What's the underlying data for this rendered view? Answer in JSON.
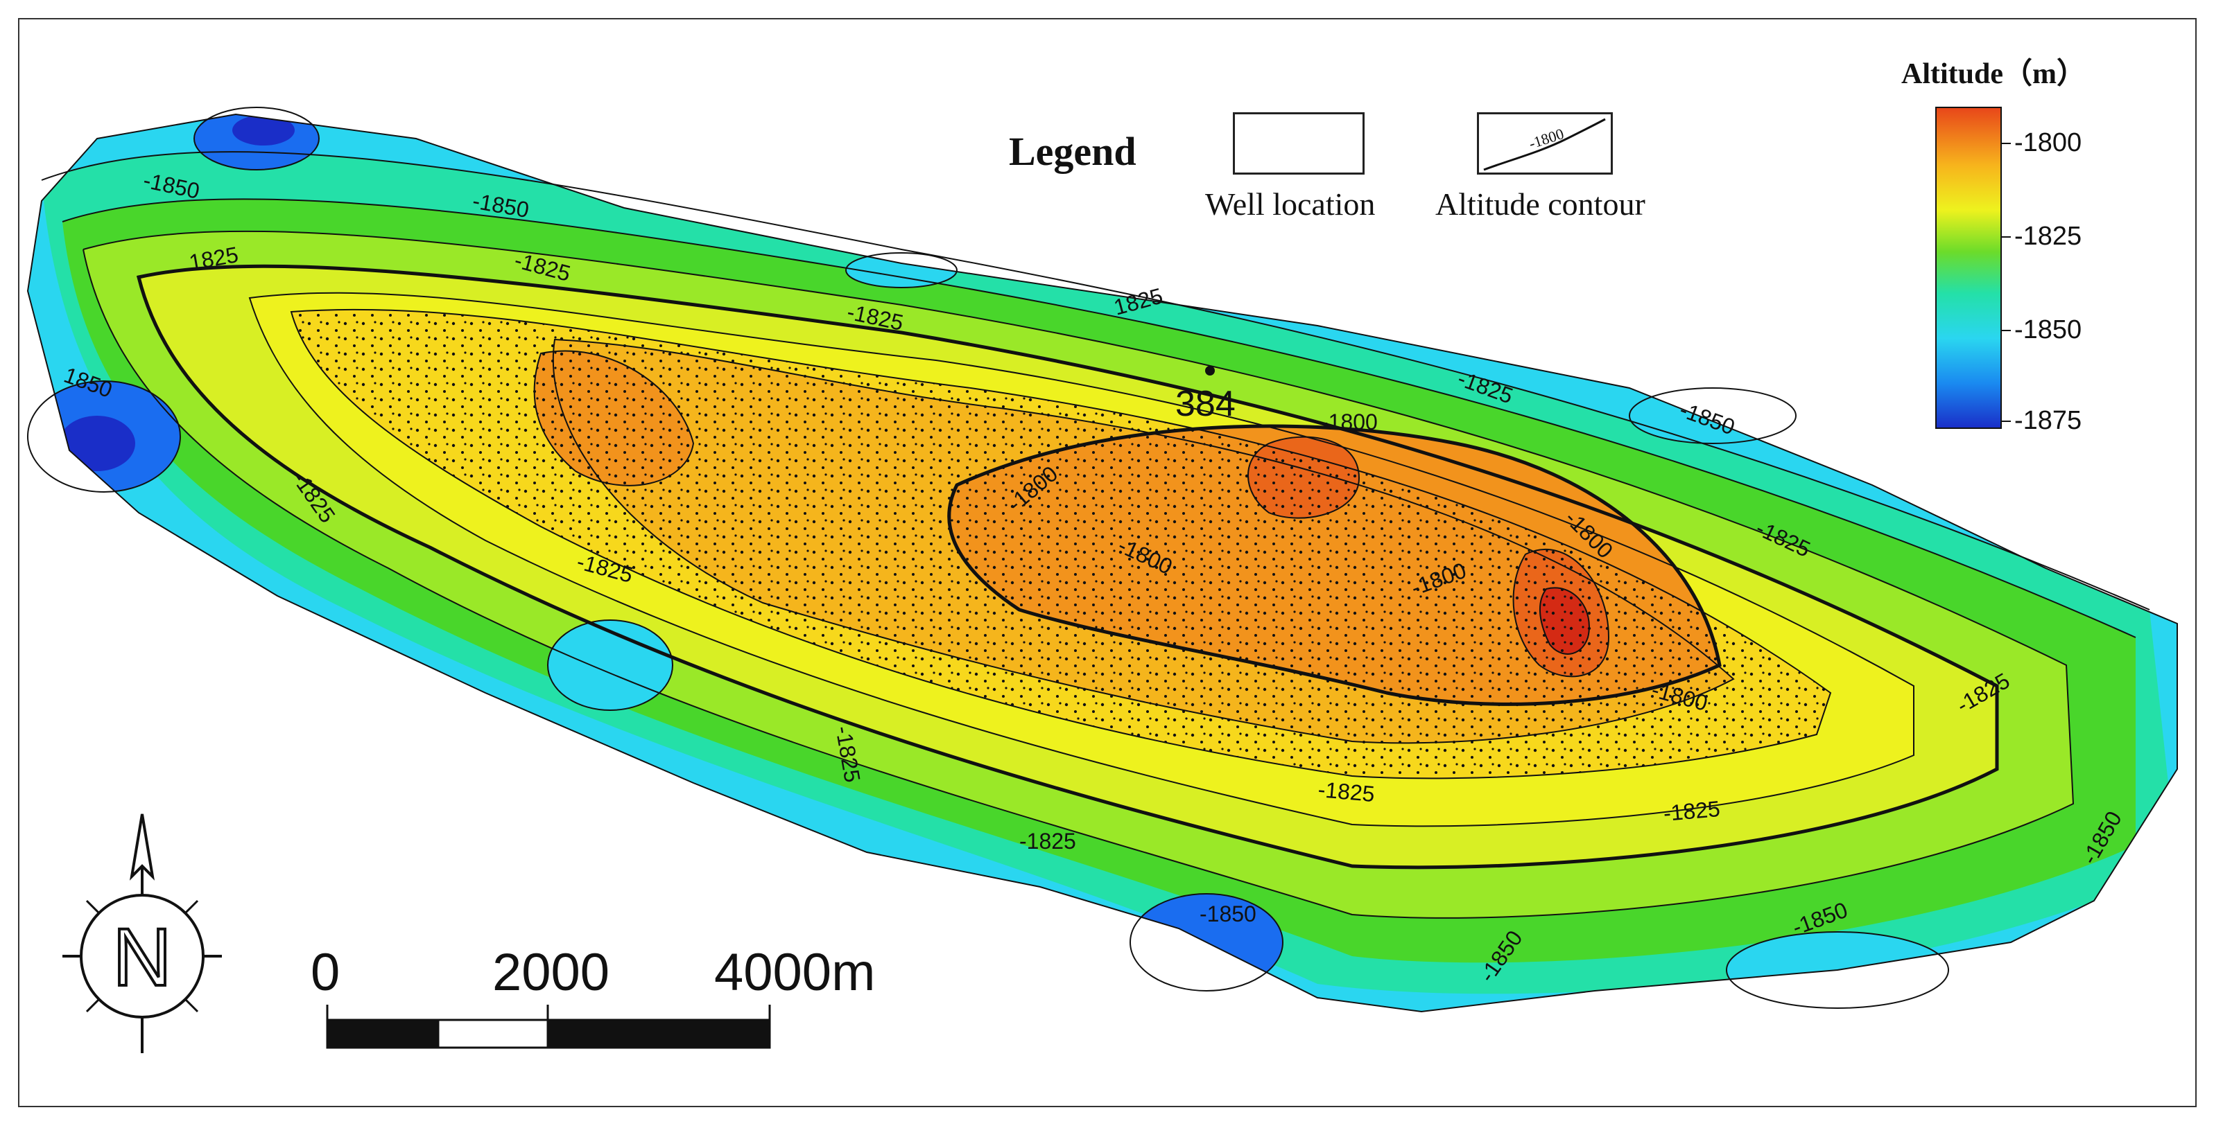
{
  "legend": {
    "title": "Legend",
    "well_location_label": "Well location",
    "altitude_contour_label": "Altitude contour",
    "contour_sample_value": "-1800"
  },
  "colorbar": {
    "title": "Altitude（m）",
    "ticks": [
      "-1800",
      "-1825",
      "-1850",
      "-1875"
    ],
    "colors": [
      "#e8461a",
      "#f7c51a",
      "#e9f21f",
      "#49d62b",
      "#24e0a8",
      "#2ad6f0",
      "#1a6df0",
      "#1a2ec8"
    ]
  },
  "well": {
    "id": "384"
  },
  "contour_labels": {
    "c1850": "-1850",
    "c1825": "-1825",
    "c1800": "-1800",
    "c1825_bare": "1825",
    "c1850_bare": "1850"
  },
  "scale_bar": {
    "labels": [
      "0",
      "2000",
      "4000m"
    ]
  },
  "north_arrow": {
    "letter": "N"
  }
}
